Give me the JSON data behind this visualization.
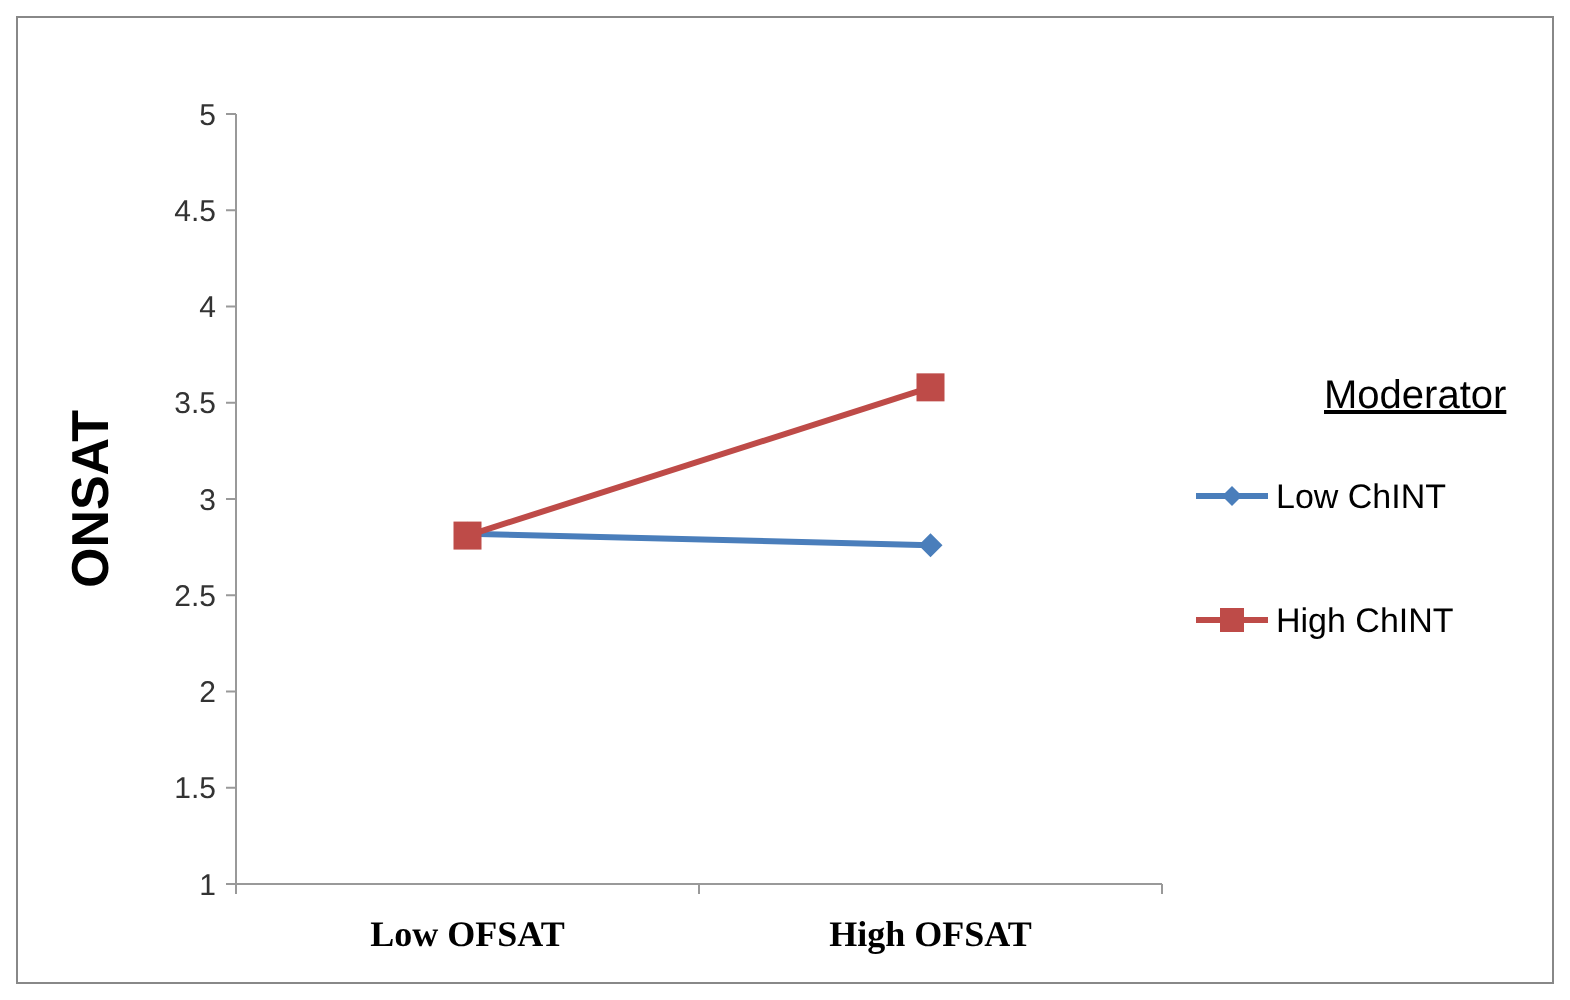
{
  "chart_data": {
    "type": "line",
    "ylabel": "ONSAT",
    "legend_title": "Moderator",
    "categories": [
      "Low OFSAT",
      "High OFSAT"
    ],
    "series": [
      {
        "name": "Low ChINT",
        "color": "#4a7ebb",
        "values": [
          2.82,
          2.76
        ],
        "marker": "diamond"
      },
      {
        "name": "High ChINT",
        "color": "#be4b48",
        "values": [
          2.81,
          3.58
        ],
        "marker": "square"
      }
    ],
    "ylim": [
      1,
      5
    ],
    "yticks": [
      1,
      1.5,
      2,
      2.5,
      3,
      3.5,
      4,
      4.5,
      5
    ],
    "grid": false,
    "legend": "right"
  }
}
